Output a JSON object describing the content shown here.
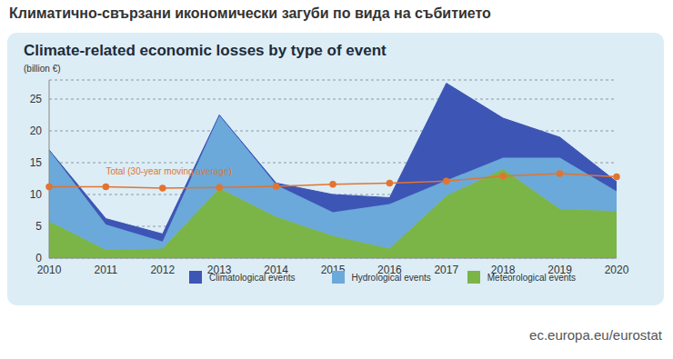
{
  "header": "Климатично-свързани икономически загуби по вида на събитието",
  "source": "ec.europa.eu/eurostat",
  "chart_data": {
    "type": "area",
    "title": "Climate-related economic losses by type of event",
    "y_label": "(billion €)",
    "stacked": true,
    "grid": true,
    "categories": [
      "2010",
      "2011",
      "2012",
      "2013",
      "2014",
      "2015",
      "2016",
      "2017",
      "2018",
      "2019",
      "2020"
    ],
    "series": [
      {
        "name": "Climatological events",
        "color": "#3d55b5",
        "type": "area",
        "values": [
          0,
          0.9,
          1.2,
          0,
          0.3,
          2.8,
          1.0,
          15.3,
          6.2,
          3.2,
          1.5
        ]
      },
      {
        "name": "Hydrological events",
        "color": "#6aa9d9",
        "type": "area",
        "values": [
          11.2,
          4.0,
          1.1,
          11.5,
          5.0,
          3.7,
          7.0,
          2.4,
          1.8,
          8.1,
          3.1
        ]
      },
      {
        "name": "Meteorological events",
        "color": "#7bb547",
        "type": "area",
        "values": [
          5.8,
          1.3,
          1.5,
          11.0,
          6.5,
          3.5,
          1.5,
          9.8,
          14.0,
          7.7,
          7.4
        ]
      },
      {
        "name": "Total (30-year moving average)",
        "color": "#e2742f",
        "type": "line",
        "marker": "circle",
        "values": [
          11.2,
          11.2,
          11.0,
          11.1,
          11.3,
          11.6,
          11.8,
          12.1,
          12.9,
          13.3,
          12.8
        ]
      }
    ],
    "ylim": [
      0,
      28
    ],
    "yticks": [
      0,
      5,
      10,
      15,
      20,
      25
    ]
  }
}
